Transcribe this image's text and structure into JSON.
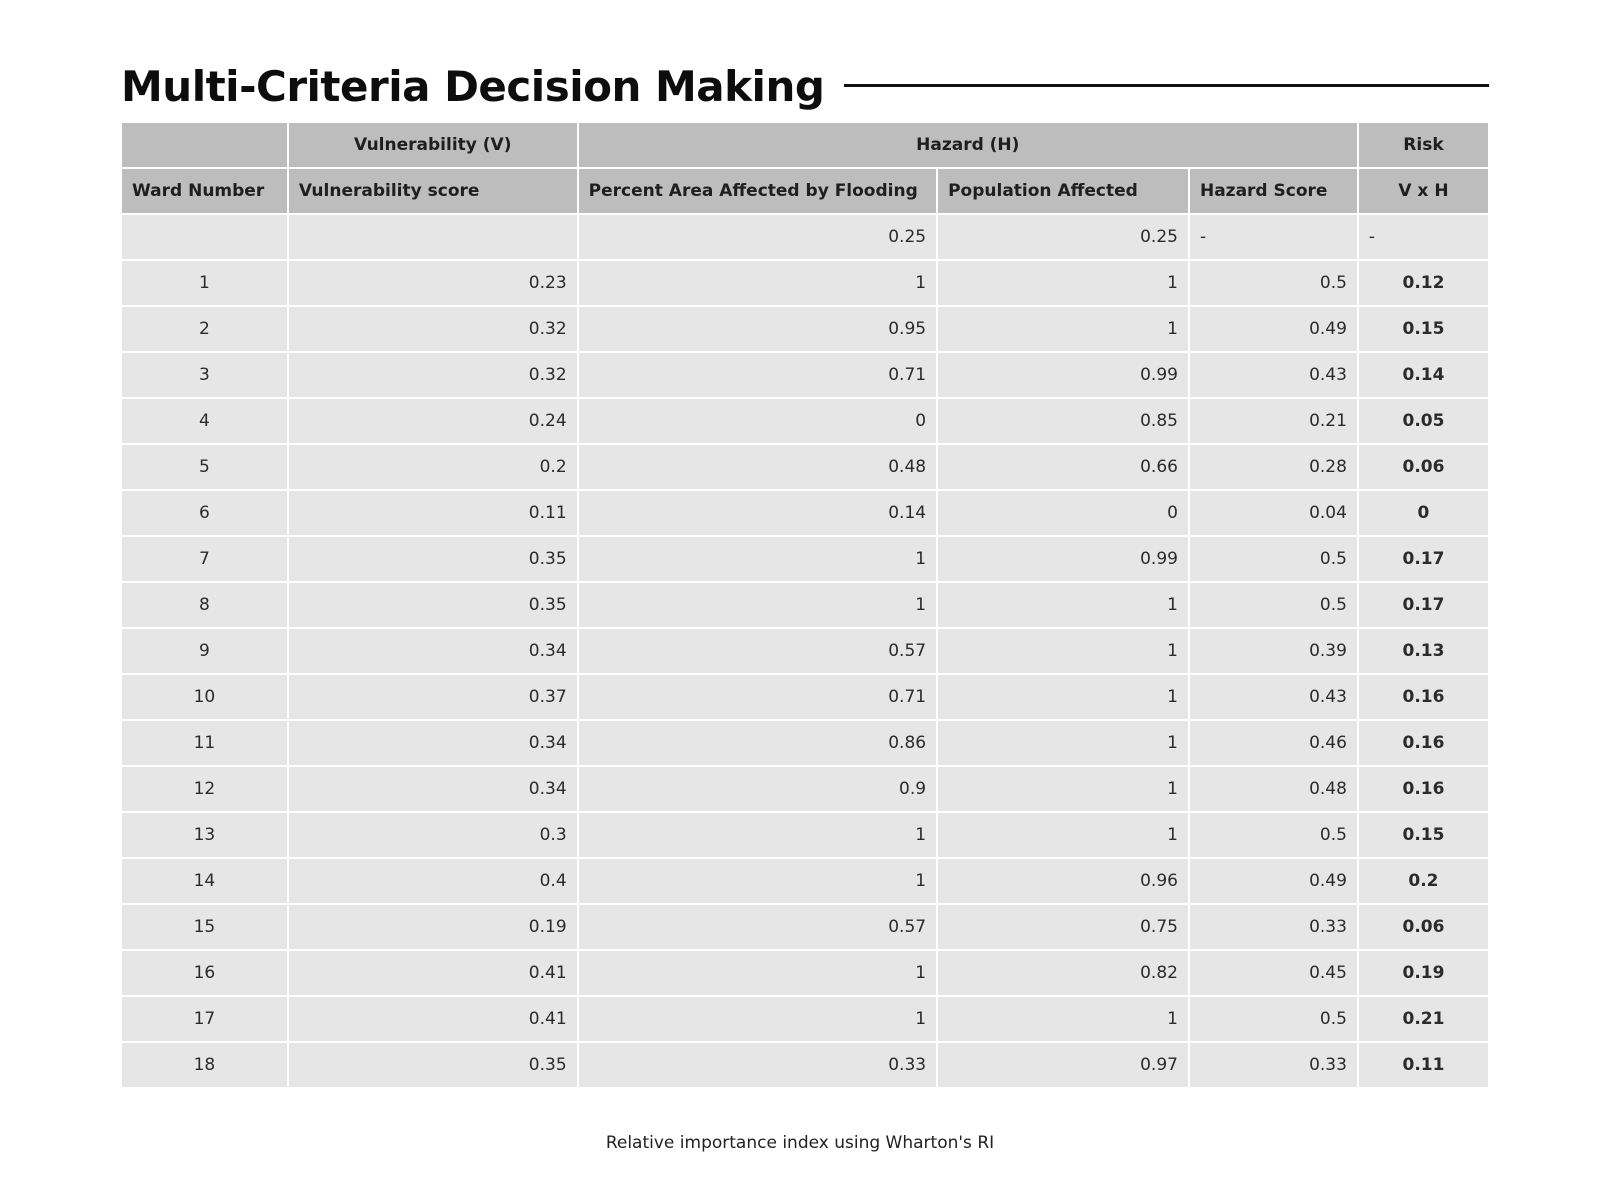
{
  "title": "Multi-Criteria Decision Making",
  "header": {
    "group_vulnerability": "Vulnerability (V)",
    "group_hazard": "Hazard (H)",
    "group_risk": "Risk",
    "col_ward": "Ward Number",
    "col_vuln": "Vulnerability score",
    "col_area": "Percent Area Affected by Flooding",
    "col_pop": "Population Affected",
    "col_hazard": "Hazard Score",
    "col_risk": "V x H"
  },
  "weights_row": {
    "ward": "",
    "vuln": "",
    "area": "0.25",
    "pop": "0.25",
    "hazard": "-",
    "risk": "-"
  },
  "rows": [
    {
      "ward": "1",
      "vuln": "0.23",
      "area": "1",
      "pop": "1",
      "hazard": "0.5",
      "risk": "0.12"
    },
    {
      "ward": "2",
      "vuln": "0.32",
      "area": "0.95",
      "pop": "1",
      "hazard": "0.49",
      "risk": "0.15"
    },
    {
      "ward": "3",
      "vuln": "0.32",
      "area": "0.71",
      "pop": "0.99",
      "hazard": "0.43",
      "risk": "0.14"
    },
    {
      "ward": "4",
      "vuln": "0.24",
      "area": "0",
      "pop": "0.85",
      "hazard": "0.21",
      "risk": "0.05"
    },
    {
      "ward": "5",
      "vuln": "0.2",
      "area": "0.48",
      "pop": "0.66",
      "hazard": "0.28",
      "risk": "0.06"
    },
    {
      "ward": "6",
      "vuln": "0.11",
      "area": "0.14",
      "pop": "0",
      "hazard": "0.04",
      "risk": "0"
    },
    {
      "ward": "7",
      "vuln": "0.35",
      "area": "1",
      "pop": "0.99",
      "hazard": "0.5",
      "risk": "0.17"
    },
    {
      "ward": "8",
      "vuln": "0.35",
      "area": "1",
      "pop": "1",
      "hazard": "0.5",
      "risk": "0.17"
    },
    {
      "ward": "9",
      "vuln": "0.34",
      "area": "0.57",
      "pop": "1",
      "hazard": "0.39",
      "risk": "0.13"
    },
    {
      "ward": "10",
      "vuln": "0.37",
      "area": "0.71",
      "pop": "1",
      "hazard": "0.43",
      "risk": "0.16"
    },
    {
      "ward": "11",
      "vuln": "0.34",
      "area": "0.86",
      "pop": "1",
      "hazard": "0.46",
      "risk": "0.16"
    },
    {
      "ward": "12",
      "vuln": "0.34",
      "area": "0.9",
      "pop": "1",
      "hazard": "0.48",
      "risk": "0.16"
    },
    {
      "ward": "13",
      "vuln": "0.3",
      "area": "1",
      "pop": "1",
      "hazard": "0.5",
      "risk": "0.15"
    },
    {
      "ward": "14",
      "vuln": "0.4",
      "area": "1",
      "pop": "0.96",
      "hazard": "0.49",
      "risk": "0.2"
    },
    {
      "ward": "15",
      "vuln": "0.19",
      "area": "0.57",
      "pop": "0.75",
      "hazard": "0.33",
      "risk": "0.06"
    },
    {
      "ward": "16",
      "vuln": "0.41",
      "area": "1",
      "pop": "0.82",
      "hazard": "0.45",
      "risk": "0.19"
    },
    {
      "ward": "17",
      "vuln": "0.41",
      "area": "1",
      "pop": "1",
      "hazard": "0.5",
      "risk": "0.21"
    },
    {
      "ward": "18",
      "vuln": "0.35",
      "area": "0.33",
      "pop": "0.97",
      "hazard": "0.33",
      "risk": "0.11"
    }
  ],
  "caption": "Relative importance index using Wharton's RI"
}
